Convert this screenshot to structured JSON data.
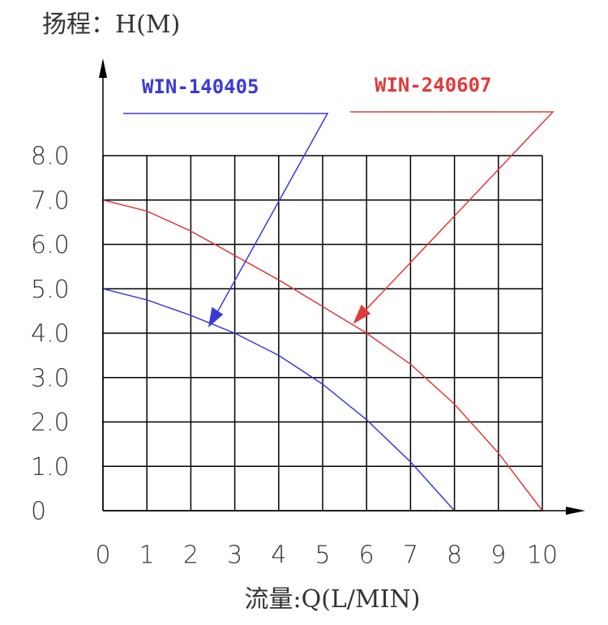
{
  "chart_data": {
    "type": "line",
    "ylabel": "扬程：H(M)",
    "xlabel": "流量:Q(L/MIN)",
    "x": [
      0,
      1,
      2,
      3,
      4,
      5,
      6,
      7,
      8,
      9,
      10
    ],
    "series": [
      {
        "name": "WIN-140405",
        "color": "#3a3ad8",
        "values": [
          5.0,
          4.75,
          4.4,
          4.0,
          3.5,
          2.85,
          2.05,
          1.1,
          0,
          null,
          null
        ]
      },
      {
        "name": "WIN-240607",
        "color": "#e03a3a",
        "values": [
          7.0,
          6.75,
          6.3,
          5.75,
          5.2,
          4.6,
          4.0,
          3.3,
          2.4,
          1.3,
          0
        ]
      }
    ],
    "xlim": [
      0,
      10
    ],
    "ylim": [
      0,
      8
    ],
    "xticks": [
      0,
      1,
      2,
      3,
      4,
      5,
      6,
      7,
      8,
      9,
      10
    ],
    "yticks": [
      0,
      {
        "value": 1,
        "label": "1.0"
      },
      {
        "value": 2,
        "label": "2.0"
      },
      {
        "value": 3,
        "label": "3.0"
      },
      {
        "value": 4,
        "label": "4.0"
      },
      {
        "value": 5,
        "label": "5.0"
      },
      {
        "value": 6,
        "label": "6.0"
      },
      {
        "value": 7,
        "label": "7.0"
      },
      {
        "value": 8,
        "label": "8.0"
      }
    ],
    "grid": true
  }
}
